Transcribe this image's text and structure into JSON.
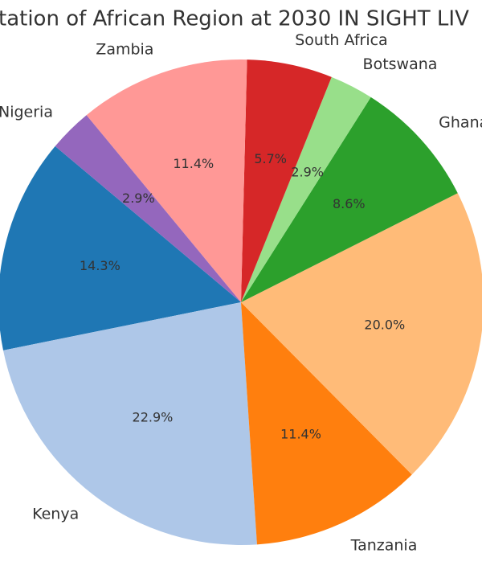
{
  "chart_data": {
    "type": "pie",
    "title": "tation of African Region at 2030 IN SIGHT LIV",
    "categories": [
      null,
      "Kenya",
      "Tanzania",
      null,
      "Ghana",
      "Botswana",
      "South Africa",
      "Zambia",
      "Nigeria"
    ],
    "values": [
      14.3,
      22.9,
      11.4,
      20.0,
      8.6,
      2.9,
      5.7,
      11.4,
      2.9
    ],
    "value_labels": [
      "14.3%",
      "22.9%",
      "11.4%",
      "20.0%",
      "8.6%",
      "2.9%",
      "5.7%",
      "11.4%",
      "2.9%"
    ],
    "colors": [
      "#1f77b4",
      "#aec7e8",
      "#ff7f0e",
      "#ffbb78",
      "#2ca02c",
      "#98df8a",
      "#d62728",
      "#ff9896",
      "#9467bd"
    ],
    "start_angle": 140
  }
}
